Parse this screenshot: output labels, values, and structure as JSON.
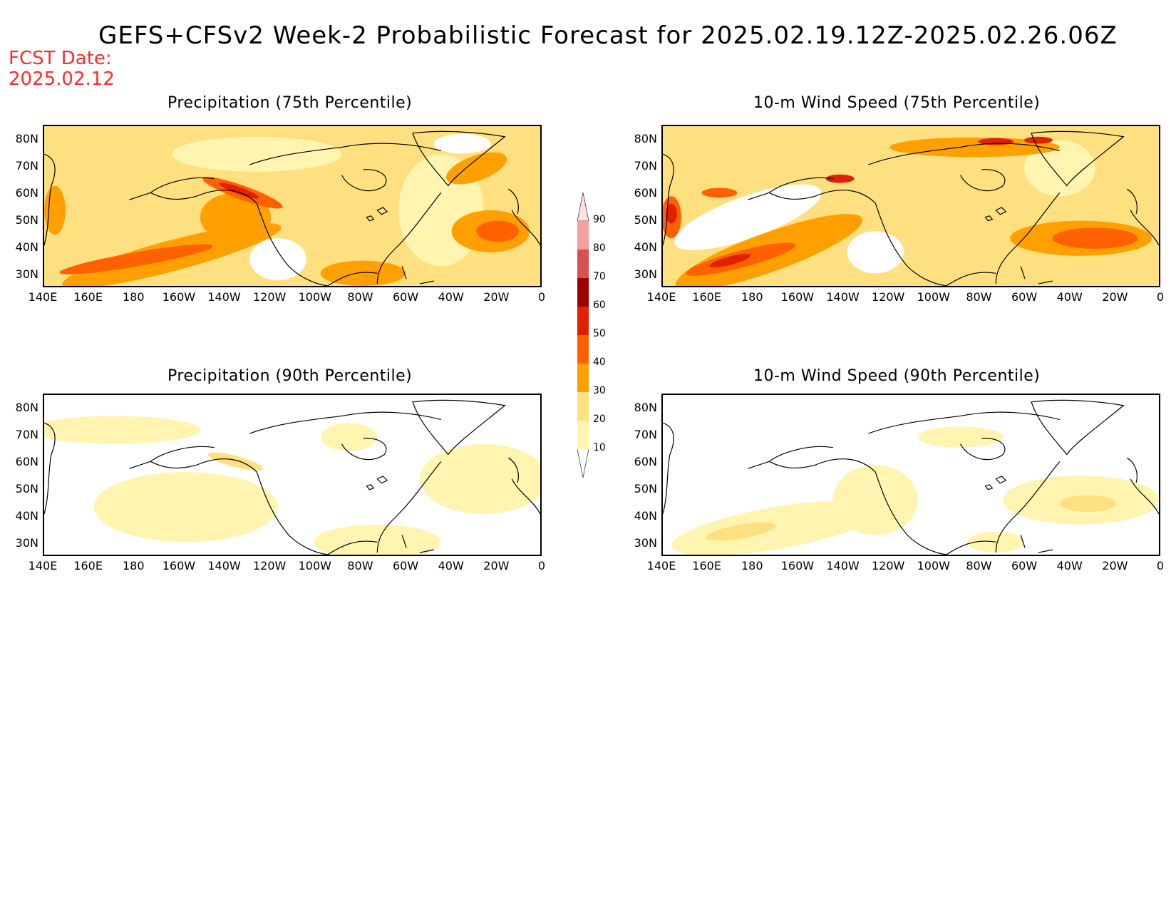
{
  "title": "GEFS+CFSv2 Week-2 Probabilistic Forecast for 2025.02.19.12Z-2025.02.26.06Z",
  "fcst_date": {
    "label": "FCST Date:",
    "value": "2025.02.12"
  },
  "panels": [
    {
      "id": "precip75",
      "title": "Precipitation (75th Percentile)"
    },
    {
      "id": "wind75",
      "title": "10-m Wind Speed (75th Percentile)"
    },
    {
      "id": "precip90",
      "title": "Precipitation (90th Percentile)"
    },
    {
      "id": "wind90",
      "title": "10-m Wind Speed (90th Percentile)"
    }
  ],
  "lat_labels": [
    "80N",
    "70N",
    "60N",
    "50N",
    "40N",
    "30N"
  ],
  "lon_labels": [
    "140E",
    "160E",
    "180",
    "160W",
    "140W",
    "120W",
    "100W",
    "80W",
    "60W",
    "40W",
    "20W",
    "0"
  ],
  "colorbar": {
    "levels": [
      "90",
      "80",
      "70",
      "60",
      "50",
      "40",
      "30",
      "20",
      "10"
    ],
    "colors": [
      "#ffe0e0",
      "#f4a0a0",
      "#d85050",
      "#a00000",
      "#e02000",
      "#ff6000",
      "#ffa000",
      "#ffe080",
      "#fff4b0"
    ]
  },
  "colors": {
    "title": "#000000",
    "fcst_date": "#ff2a2a",
    "coastline": "#000000"
  }
}
